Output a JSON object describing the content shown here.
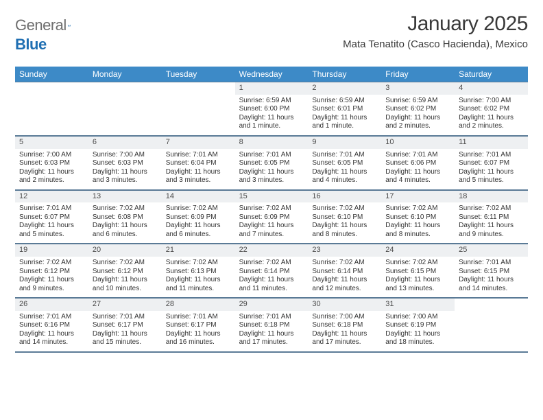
{
  "brand": {
    "name_gray": "General",
    "name_blue": "Blue"
  },
  "title": "January 2025",
  "location": "Mata Tenatito (Casco Hacienda), Mexico",
  "colors": {
    "header_bg": "#3d8ac7",
    "header_text": "#ffffff",
    "row_border": "#5a7a96",
    "daynum_bg": "#eef0f2",
    "text": "#333333",
    "logo_gray": "#6e6e6e",
    "logo_blue": "#1f6fb2",
    "page_bg": "#ffffff"
  },
  "typography": {
    "title_fontsize": 30,
    "location_fontsize": 15,
    "dayheader_fontsize": 12,
    "cell_fontsize": 10
  },
  "day_headers": [
    "Sunday",
    "Monday",
    "Tuesday",
    "Wednesday",
    "Thursday",
    "Friday",
    "Saturday"
  ],
  "weeks": [
    [
      {
        "day": "",
        "sunrise": "",
        "sunset": "",
        "daylight": ""
      },
      {
        "day": "",
        "sunrise": "",
        "sunset": "",
        "daylight": ""
      },
      {
        "day": "",
        "sunrise": "",
        "sunset": "",
        "daylight": ""
      },
      {
        "day": "1",
        "sunrise": "Sunrise: 6:59 AM",
        "sunset": "Sunset: 6:00 PM",
        "daylight": "Daylight: 11 hours and 1 minute."
      },
      {
        "day": "2",
        "sunrise": "Sunrise: 6:59 AM",
        "sunset": "Sunset: 6:01 PM",
        "daylight": "Daylight: 11 hours and 1 minute."
      },
      {
        "day": "3",
        "sunrise": "Sunrise: 6:59 AM",
        "sunset": "Sunset: 6:02 PM",
        "daylight": "Daylight: 11 hours and 2 minutes."
      },
      {
        "day": "4",
        "sunrise": "Sunrise: 7:00 AM",
        "sunset": "Sunset: 6:02 PM",
        "daylight": "Daylight: 11 hours and 2 minutes."
      }
    ],
    [
      {
        "day": "5",
        "sunrise": "Sunrise: 7:00 AM",
        "sunset": "Sunset: 6:03 PM",
        "daylight": "Daylight: 11 hours and 2 minutes."
      },
      {
        "day": "6",
        "sunrise": "Sunrise: 7:00 AM",
        "sunset": "Sunset: 6:03 PM",
        "daylight": "Daylight: 11 hours and 3 minutes."
      },
      {
        "day": "7",
        "sunrise": "Sunrise: 7:01 AM",
        "sunset": "Sunset: 6:04 PM",
        "daylight": "Daylight: 11 hours and 3 minutes."
      },
      {
        "day": "8",
        "sunrise": "Sunrise: 7:01 AM",
        "sunset": "Sunset: 6:05 PM",
        "daylight": "Daylight: 11 hours and 3 minutes."
      },
      {
        "day": "9",
        "sunrise": "Sunrise: 7:01 AM",
        "sunset": "Sunset: 6:05 PM",
        "daylight": "Daylight: 11 hours and 4 minutes."
      },
      {
        "day": "10",
        "sunrise": "Sunrise: 7:01 AM",
        "sunset": "Sunset: 6:06 PM",
        "daylight": "Daylight: 11 hours and 4 minutes."
      },
      {
        "day": "11",
        "sunrise": "Sunrise: 7:01 AM",
        "sunset": "Sunset: 6:07 PM",
        "daylight": "Daylight: 11 hours and 5 minutes."
      }
    ],
    [
      {
        "day": "12",
        "sunrise": "Sunrise: 7:01 AM",
        "sunset": "Sunset: 6:07 PM",
        "daylight": "Daylight: 11 hours and 5 minutes."
      },
      {
        "day": "13",
        "sunrise": "Sunrise: 7:02 AM",
        "sunset": "Sunset: 6:08 PM",
        "daylight": "Daylight: 11 hours and 6 minutes."
      },
      {
        "day": "14",
        "sunrise": "Sunrise: 7:02 AM",
        "sunset": "Sunset: 6:09 PM",
        "daylight": "Daylight: 11 hours and 6 minutes."
      },
      {
        "day": "15",
        "sunrise": "Sunrise: 7:02 AM",
        "sunset": "Sunset: 6:09 PM",
        "daylight": "Daylight: 11 hours and 7 minutes."
      },
      {
        "day": "16",
        "sunrise": "Sunrise: 7:02 AM",
        "sunset": "Sunset: 6:10 PM",
        "daylight": "Daylight: 11 hours and 8 minutes."
      },
      {
        "day": "17",
        "sunrise": "Sunrise: 7:02 AM",
        "sunset": "Sunset: 6:10 PM",
        "daylight": "Daylight: 11 hours and 8 minutes."
      },
      {
        "day": "18",
        "sunrise": "Sunrise: 7:02 AM",
        "sunset": "Sunset: 6:11 PM",
        "daylight": "Daylight: 11 hours and 9 minutes."
      }
    ],
    [
      {
        "day": "19",
        "sunrise": "Sunrise: 7:02 AM",
        "sunset": "Sunset: 6:12 PM",
        "daylight": "Daylight: 11 hours and 9 minutes."
      },
      {
        "day": "20",
        "sunrise": "Sunrise: 7:02 AM",
        "sunset": "Sunset: 6:12 PM",
        "daylight": "Daylight: 11 hours and 10 minutes."
      },
      {
        "day": "21",
        "sunrise": "Sunrise: 7:02 AM",
        "sunset": "Sunset: 6:13 PM",
        "daylight": "Daylight: 11 hours and 11 minutes."
      },
      {
        "day": "22",
        "sunrise": "Sunrise: 7:02 AM",
        "sunset": "Sunset: 6:14 PM",
        "daylight": "Daylight: 11 hours and 11 minutes."
      },
      {
        "day": "23",
        "sunrise": "Sunrise: 7:02 AM",
        "sunset": "Sunset: 6:14 PM",
        "daylight": "Daylight: 11 hours and 12 minutes."
      },
      {
        "day": "24",
        "sunrise": "Sunrise: 7:02 AM",
        "sunset": "Sunset: 6:15 PM",
        "daylight": "Daylight: 11 hours and 13 minutes."
      },
      {
        "day": "25",
        "sunrise": "Sunrise: 7:01 AM",
        "sunset": "Sunset: 6:15 PM",
        "daylight": "Daylight: 11 hours and 14 minutes."
      }
    ],
    [
      {
        "day": "26",
        "sunrise": "Sunrise: 7:01 AM",
        "sunset": "Sunset: 6:16 PM",
        "daylight": "Daylight: 11 hours and 14 minutes."
      },
      {
        "day": "27",
        "sunrise": "Sunrise: 7:01 AM",
        "sunset": "Sunset: 6:17 PM",
        "daylight": "Daylight: 11 hours and 15 minutes."
      },
      {
        "day": "28",
        "sunrise": "Sunrise: 7:01 AM",
        "sunset": "Sunset: 6:17 PM",
        "daylight": "Daylight: 11 hours and 16 minutes."
      },
      {
        "day": "29",
        "sunrise": "Sunrise: 7:01 AM",
        "sunset": "Sunset: 6:18 PM",
        "daylight": "Daylight: 11 hours and 17 minutes."
      },
      {
        "day": "30",
        "sunrise": "Sunrise: 7:00 AM",
        "sunset": "Sunset: 6:18 PM",
        "daylight": "Daylight: 11 hours and 17 minutes."
      },
      {
        "day": "31",
        "sunrise": "Sunrise: 7:00 AM",
        "sunset": "Sunset: 6:19 PM",
        "daylight": "Daylight: 11 hours and 18 minutes."
      },
      {
        "day": "",
        "sunrise": "",
        "sunset": "",
        "daylight": ""
      }
    ]
  ]
}
